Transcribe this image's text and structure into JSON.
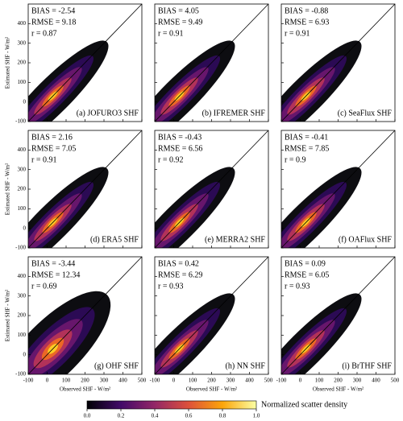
{
  "chart_data": [
    {
      "type": "scatter",
      "title": "(a) JOFURO3 SHF",
      "annotations": [
        "BIAS = -2.54",
        "RMSE = 9.18",
        "r = 0.87"
      ],
      "ylabel": "Estimated SHF - W/m²",
      "xlim": [
        -100,
        500
      ],
      "ylim": [
        -100,
        500
      ],
      "xticks": [
        -100,
        0,
        100,
        200,
        300,
        400,
        500
      ],
      "yticks": [
        -100,
        0,
        100,
        200,
        300,
        400
      ]
    },
    {
      "type": "scatter",
      "title": "(b) IFREMER SHF",
      "annotations": [
        "BIAS = 4.05",
        "RMSE = 9.49",
        "r = 0.91"
      ],
      "xlim": [
        -100,
        500
      ],
      "ylim": [
        -100,
        500
      ],
      "xticks": [
        -100,
        0,
        100,
        200,
        300,
        400,
        500
      ],
      "yticks": [
        -100,
        0,
        100,
        200,
        300,
        400
      ]
    },
    {
      "type": "scatter",
      "title": "(c) SeaFlux SHF",
      "annotations": [
        "BIAS = -0.88",
        "RMSE = 6.93",
        "r = 0.91"
      ],
      "xlim": [
        -100,
        500
      ],
      "ylim": [
        -100,
        500
      ],
      "xticks": [
        -100,
        0,
        100,
        200,
        300,
        400,
        500
      ],
      "yticks": [
        -100,
        0,
        100,
        200,
        300,
        400
      ]
    },
    {
      "type": "scatter",
      "title": "(d) ERA5 SHF",
      "annotations": [
        "BIAS = 2.16",
        "RMSE = 7.05",
        "r = 0.91"
      ],
      "ylabel": "Estimated SHF - W/m²",
      "xlim": [
        -100,
        500
      ],
      "ylim": [
        -100,
        500
      ],
      "xticks": [
        -100,
        0,
        100,
        200,
        300,
        400,
        500
      ],
      "yticks": [
        -100,
        0,
        100,
        200,
        300,
        400
      ]
    },
    {
      "type": "scatter",
      "title": "(e) MERRA2 SHF",
      "annotations": [
        "BIAS = -0.43",
        "RMSE = 6.56",
        "r = 0.92"
      ],
      "xlim": [
        -100,
        500
      ],
      "ylim": [
        -100,
        500
      ],
      "xticks": [
        -100,
        0,
        100,
        200,
        300,
        400,
        500
      ],
      "yticks": [
        -100,
        0,
        100,
        200,
        300,
        400
      ]
    },
    {
      "type": "scatter",
      "title": "(f) OAFlux SHF",
      "annotations": [
        "BIAS = -0.41",
        "RMSE = 7.85",
        "r = 0.9"
      ],
      "xlim": [
        -100,
        500
      ],
      "ylim": [
        -100,
        500
      ],
      "xticks": [
        -100,
        0,
        100,
        200,
        300,
        400,
        500
      ],
      "yticks": [
        -100,
        0,
        100,
        200,
        300,
        400
      ]
    },
    {
      "type": "scatter",
      "title": "(g) OHF SHF",
      "annotations": [
        "BIAS = -3.44",
        "RMSE = 12.34",
        "r = 0.69"
      ],
      "xlabel": "Observed SHF - W/m²",
      "ylabel": "Estimated SHF - W/m²",
      "xlim": [
        -100,
        500
      ],
      "ylim": [
        -100,
        500
      ],
      "xticks": [
        -100,
        0,
        100,
        200,
        300,
        400,
        500
      ],
      "yticks": [
        -100,
        0,
        100,
        200,
        300,
        400
      ]
    },
    {
      "type": "scatter",
      "title": "(h) NN SHF",
      "annotations": [
        "BIAS = 0.42",
        "RMSE = 6.29",
        "r = 0.93"
      ],
      "xlabel": "Observed SHF - W/m²",
      "xlim": [
        -100,
        500
      ],
      "ylim": [
        -100,
        500
      ],
      "xticks": [
        -100,
        0,
        100,
        200,
        300,
        400,
        500
      ],
      "yticks": [
        -100,
        0,
        100,
        200,
        300,
        400
      ]
    },
    {
      "type": "scatter",
      "title": "(i) BrTHF SHF",
      "annotations": [
        "BIAS = 0.09",
        "RMSE = 6.05",
        "r = 0.93"
      ],
      "xlabel": "Observed SHF - W/m²",
      "xlim": [
        -100,
        500
      ],
      "ylim": [
        -100,
        500
      ],
      "xticks": [
        -100,
        0,
        100,
        200,
        300,
        400,
        500
      ],
      "yticks": [
        -100,
        0,
        100,
        200,
        300,
        400
      ]
    }
  ],
  "colorbar": {
    "label": "Normalized scatter density",
    "lim": [
      0,
      1
    ],
    "ticks": [
      {
        "value": 0,
        "label": "0.0"
      },
      {
        "value": 0.2,
        "label": "0.2"
      },
      {
        "value": 0.4,
        "label": "0.4"
      },
      {
        "value": 0.6,
        "label": "0.6"
      },
      {
        "value": 0.8,
        "label": "0.8"
      },
      {
        "value": 1,
        "label": "1.0"
      }
    ]
  }
}
